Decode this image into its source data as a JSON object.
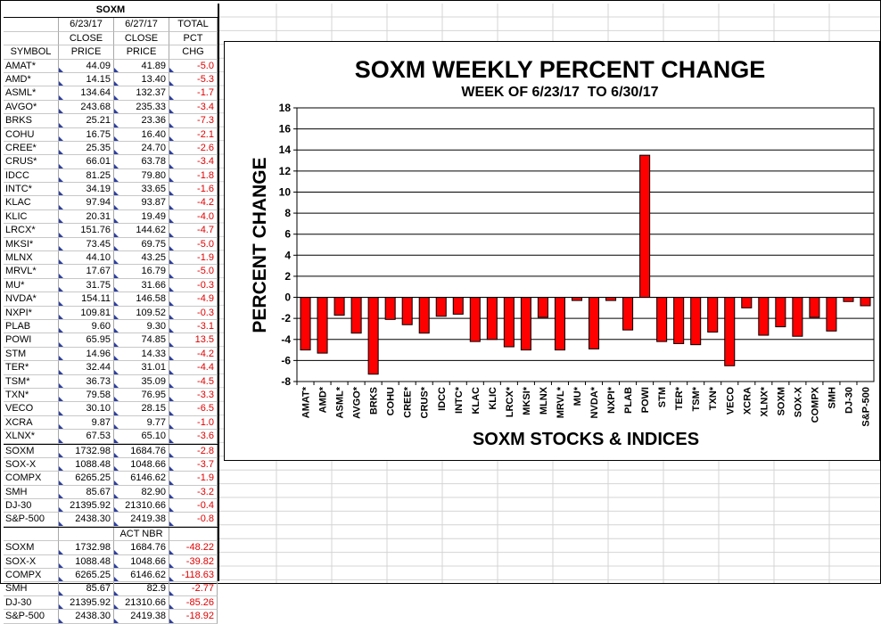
{
  "table": {
    "title": "SOXM",
    "header1": [
      "",
      "6/23/17",
      "6/27/17",
      "TOTAL"
    ],
    "header2": [
      "",
      "CLOSE",
      "CLOSE",
      "PCT"
    ],
    "header3": [
      "SYMBOL",
      "PRICE",
      "PRICE",
      "CHG"
    ],
    "rows": [
      [
        "AMAT*",
        "44.09",
        "41.89",
        "-5.0"
      ],
      [
        "AMD*",
        "14.15",
        "13.40",
        "-5.3"
      ],
      [
        "ASML*",
        "134.64",
        "132.37",
        "-1.7"
      ],
      [
        "AVGO*",
        "243.68",
        "235.33",
        "-3.4"
      ],
      [
        "BRKS",
        "25.21",
        "23.36",
        "-7.3"
      ],
      [
        "COHU",
        "16.75",
        "16.40",
        "-2.1"
      ],
      [
        "CREE*",
        "25.35",
        "24.70",
        "-2.6"
      ],
      [
        "CRUS*",
        "66.01",
        "63.78",
        "-3.4"
      ],
      [
        "IDCC",
        "81.25",
        "79.80",
        "-1.8"
      ],
      [
        "INTC*",
        "34.19",
        "33.65",
        "-1.6"
      ],
      [
        "KLAC",
        "97.94",
        "93.87",
        "-4.2"
      ],
      [
        "KLIC",
        "20.31",
        "19.49",
        "-4.0"
      ],
      [
        "LRCX*",
        "151.76",
        "144.62",
        "-4.7"
      ],
      [
        "MKSI*",
        "73.45",
        "69.75",
        "-5.0"
      ],
      [
        "MLNX",
        "44.10",
        "43.25",
        "-1.9"
      ],
      [
        "MRVL*",
        "17.67",
        "16.79",
        "-5.0"
      ],
      [
        "MU*",
        "31.75",
        "31.66",
        "-0.3"
      ],
      [
        "NVDA*",
        "154.11",
        "146.58",
        "-4.9"
      ],
      [
        "NXPI*",
        "109.81",
        "109.52",
        "-0.3"
      ],
      [
        "PLAB",
        "9.60",
        "9.30",
        "-3.1"
      ],
      [
        "POWI",
        "65.95",
        "74.85",
        "13.5"
      ],
      [
        "STM",
        "14.96",
        "14.33",
        "-4.2"
      ],
      [
        "TER*",
        "32.44",
        "31.01",
        "-4.4"
      ],
      [
        "TSM*",
        "36.73",
        "35.09",
        "-4.5"
      ],
      [
        "TXN*",
        "79.58",
        "76.95",
        "-3.3"
      ],
      [
        "VECO",
        "30.10",
        "28.15",
        "-6.5"
      ],
      [
        "XCRA",
        "9.87",
        "9.77",
        "-1.0"
      ],
      [
        "XLNX*",
        "67.53",
        "65.10",
        "-3.6"
      ]
    ],
    "index_rows": [
      [
        "SOXM",
        "1732.98",
        "1684.76",
        "-2.8"
      ],
      [
        "SOX-X",
        "1088.48",
        "1048.66",
        "-3.7"
      ],
      [
        "COMPX",
        "6265.25",
        "6146.62",
        "-1.9"
      ],
      [
        "SMH",
        "85.67",
        "82.90",
        "-3.2"
      ],
      [
        "DJ-30",
        "21395.92",
        "21310.66",
        "-0.4"
      ],
      [
        "S&P-500",
        "2438.30",
        "2419.38",
        "-0.8"
      ]
    ],
    "act_header": [
      "",
      "",
      "ACT NBR",
      ""
    ],
    "act_rows": [
      [
        "SOXM",
        "1732.98",
        "1684.76",
        "-48.22"
      ],
      [
        "SOX-X",
        "1088.48",
        "1048.66",
        "-39.82"
      ],
      [
        "COMPX",
        "6265.25",
        "6146.62",
        "-118.63"
      ],
      [
        "SMH",
        "85.67",
        "82.9",
        "-2.77"
      ],
      [
        "DJ-30",
        "21395.92",
        "21310.66",
        "-85.26"
      ],
      [
        "S&P-500",
        "2438.30",
        "2419.38",
        "-18.92"
      ]
    ]
  },
  "chart_data": {
    "type": "bar",
    "title": "SOXM WEEKLY PERCENT CHANGE",
    "subtitle": "WEEK OF 6/23/17  TO 6/30/17",
    "xlabel": "SOXM STOCKS & INDICES",
    "ylabel": "PERCENT CHANGE",
    "ylim": [
      -8,
      18
    ],
    "ytick_step": 2,
    "grid": true,
    "bar_color": "#ff0000",
    "categories": [
      "AMAT*",
      "AMD*",
      "ASML*",
      "AVGO*",
      "BRKS",
      "COHU",
      "CREE*",
      "CRUS*",
      "IDCC",
      "INTC*",
      "KLAC",
      "KLIC",
      "LRCX*",
      "MKSI*",
      "MLNX",
      "MRVL*",
      "MU*",
      "NVDA*",
      "NXPI*",
      "PLAB",
      "POWI",
      "STM",
      "TER*",
      "TSM*",
      "TXN*",
      "VECO",
      "XCRA",
      "XLNX*",
      "SOXM",
      "SOX-X",
      "COMPX",
      "SMH",
      "DJ-30",
      "S&P-500"
    ],
    "values": [
      -5.0,
      -5.3,
      -1.7,
      -3.4,
      -7.3,
      -2.1,
      -2.6,
      -3.4,
      -1.8,
      -1.6,
      -4.2,
      -4.0,
      -4.7,
      -5.0,
      -1.9,
      -5.0,
      -0.3,
      -4.9,
      -0.3,
      -3.1,
      13.5,
      -4.2,
      -4.4,
      -4.5,
      -3.3,
      -6.5,
      -1.0,
      -3.6,
      -2.8,
      -3.7,
      -1.9,
      -3.2,
      -0.4,
      -0.8
    ]
  }
}
